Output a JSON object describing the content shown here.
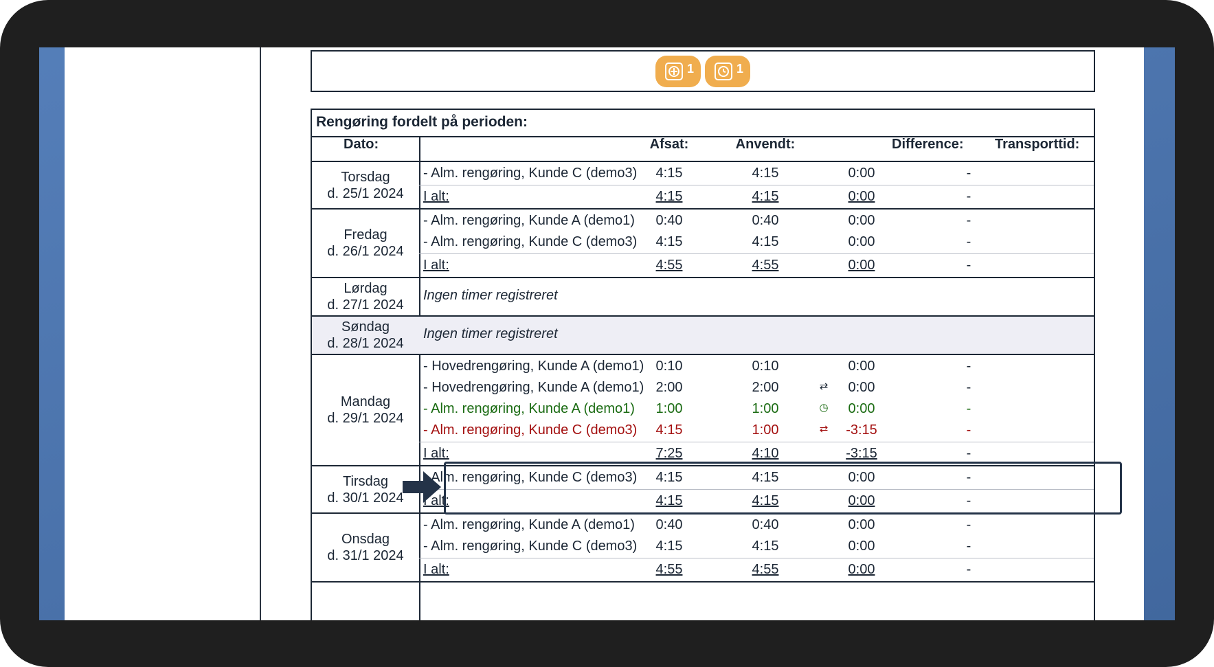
{
  "toolbar": {
    "badges": [
      {
        "icon": "plus-square-icon",
        "count": "1"
      },
      {
        "icon": "clock-icon",
        "count": "1"
      }
    ]
  },
  "table": {
    "title": "Rengøring fordelt på perioden:",
    "headers": {
      "date": "Dato:",
      "planned": "Afsat:",
      "used": "Anvendt:",
      "difference": "Difference:",
      "transport": "Transporttid:"
    },
    "total_label": "I alt:",
    "empty_label": "Ingen timer registreret",
    "days": [
      {
        "weekday": "Torsdag",
        "date": "d. 25/1 2024",
        "rows": [
          {
            "task": "Alm. rengøring, Kunde C (demo3)",
            "planned": "4:15",
            "used": "4:15",
            "diff": "0:00",
            "transport": "-"
          }
        ],
        "total": {
          "planned": "4:15",
          "used": "4:15",
          "diff": "0:00",
          "transport": "-"
        }
      },
      {
        "weekday": "Fredag",
        "date": "d. 26/1 2024",
        "rows": [
          {
            "task": "Alm. rengøring, Kunde A (demo1)",
            "planned": "0:40",
            "used": "0:40",
            "diff": "0:00",
            "transport": "-"
          },
          {
            "task": "Alm. rengøring, Kunde C (demo3)",
            "planned": "4:15",
            "used": "4:15",
            "diff": "0:00",
            "transport": "-"
          }
        ],
        "total": {
          "planned": "4:55",
          "used": "4:55",
          "diff": "0:00",
          "transport": "-"
        }
      },
      {
        "weekday": "Lørdag",
        "date": "d. 27/1 2024"
      },
      {
        "weekday": "Søndag",
        "date": "d. 28/1 2024"
      },
      {
        "weekday": "Mandag",
        "date": "d. 29/1 2024",
        "rows": [
          {
            "task": "Hovedrengøring, Kunde A (demo1)",
            "planned": "0:10",
            "used": "0:10",
            "diff": "0:00",
            "transport": "-"
          },
          {
            "task": "Hovedrengøring, Kunde A (demo1)",
            "planned": "2:00",
            "used": "2:00",
            "diff": "0:00",
            "transport": "-",
            "icon": "swap-arrows-icon"
          },
          {
            "task": "Alm. rengøring, Kunde A (demo1)",
            "planned": "1:00",
            "used": "1:00",
            "diff": "0:00",
            "transport": "-",
            "icon": "clock-check-icon",
            "status_color": "#1a6b12"
          },
          {
            "task": "Alm. rengøring, Kunde C (demo3)",
            "planned": "4:15",
            "used": "1:00",
            "diff": "-3:15",
            "transport": "-",
            "icon": "swap-arrows-icon",
            "status_color": "#a41111"
          }
        ],
        "total": {
          "planned": "7:25",
          "used": "4:10",
          "diff": "-3:15",
          "transport": "-"
        }
      },
      {
        "weekday": "Tirsdag",
        "date": "d. 30/1 2024",
        "rows": [
          {
            "task": "Alm. rengøring, Kunde C (demo3)",
            "planned": "4:15",
            "used": "4:15",
            "diff": "0:00",
            "transport": "-"
          }
        ],
        "total": {
          "planned": "4:15",
          "used": "4:15",
          "diff": "0:00",
          "transport": "-"
        }
      },
      {
        "weekday": "Onsdag",
        "date": "d. 31/1 2024",
        "rows": [
          {
            "task": "Alm. rengøring, Kunde A (demo1)",
            "planned": "0:40",
            "used": "0:40",
            "diff": "0:00",
            "transport": "-"
          },
          {
            "task": "Alm. rengøring, Kunde C (demo3)",
            "planned": "4:15",
            "used": "4:15",
            "diff": "0:00",
            "transport": "-"
          }
        ],
        "total": {
          "planned": "4:55",
          "used": "4:55",
          "diff": "0:00",
          "transport": "-"
        }
      }
    ]
  },
  "colors": {
    "badge": "#f0ad4e",
    "ok": "#1a6b12",
    "warning": "#a41111",
    "weekend_shade": "#eeeef5"
  }
}
